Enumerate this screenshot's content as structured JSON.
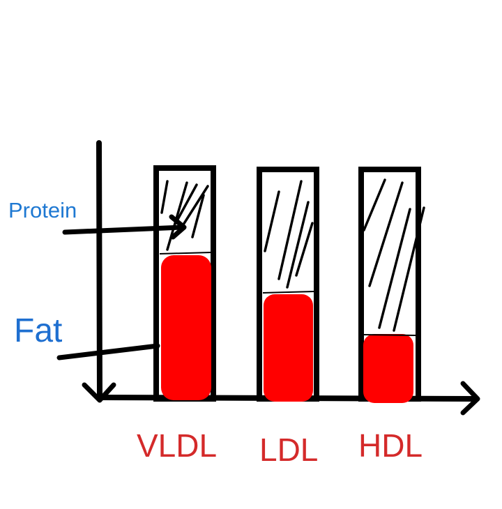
{
  "labels": {
    "protein": "Protein",
    "fat": "Fat"
  },
  "categories": [
    "VLDL",
    "LDL",
    "HDL"
  ],
  "colors": {
    "fat_fill": "#ff0000",
    "protein_label": "#1e78d2",
    "fat_label": "#1e6fd0",
    "category_label": "#d42a2a",
    "outline": "#000000"
  },
  "bars": [
    {
      "name": "VLDL",
      "fat_fraction": 0.62,
      "protein_fraction": 0.38
    },
    {
      "name": "LDL",
      "fat_fraction": 0.45,
      "protein_fraction": 0.55
    },
    {
      "name": "HDL",
      "fat_fraction": 0.28,
      "protein_fraction": 0.72
    }
  ]
}
